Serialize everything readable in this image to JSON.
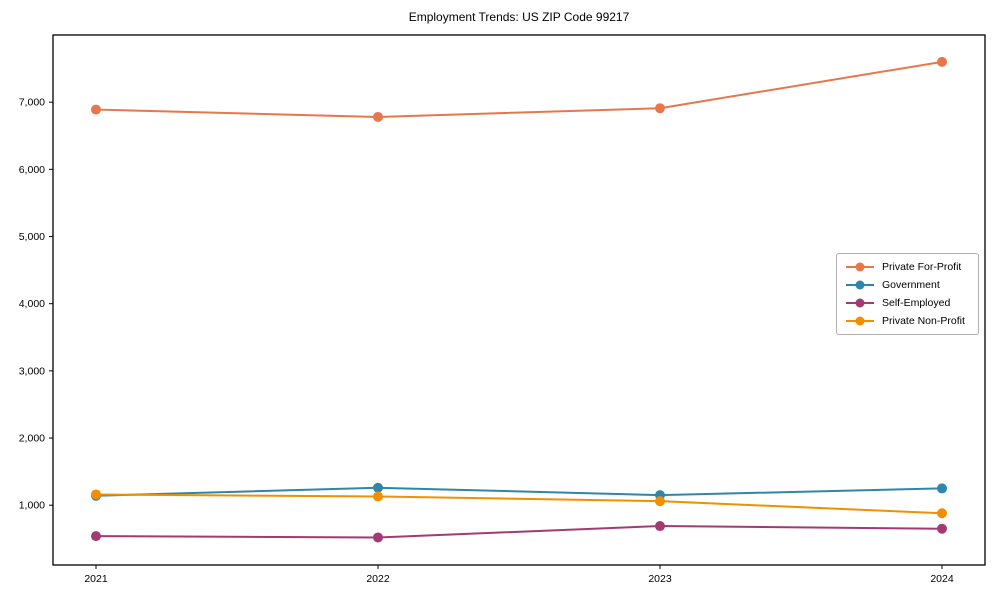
{
  "chart_data": {
    "type": "line",
    "title": "Employment Trends: US ZIP Code 99217",
    "x": [
      "2021",
      "2022",
      "2023",
      "2024"
    ],
    "series": [
      {
        "name": "Private For-Profit",
        "color": "#E8764B",
        "values": [
          6890,
          6780,
          6910,
          7600
        ]
      },
      {
        "name": "Government",
        "color": "#2E86AB",
        "values": [
          1140,
          1260,
          1150,
          1250
        ]
      },
      {
        "name": "Self-Employed",
        "color": "#A23B72",
        "values": [
          540,
          520,
          690,
          650
        ]
      },
      {
        "name": "Private Non-Profit",
        "color": "#F18F01",
        "values": [
          1160,
          1130,
          1060,
          880
        ]
      }
    ],
    "xlabel": "",
    "ylabel": "",
    "ylim": [
      110,
      8000
    ],
    "yticks": [
      1000,
      2000,
      3000,
      4000,
      5000,
      6000,
      7000
    ],
    "ytick_labels": [
      "1,000",
      "2,000",
      "3,000",
      "4,000",
      "5,000",
      "6,000",
      "7,000"
    ],
    "grid": false,
    "legend_position": "center-right",
    "axis_color": "#000000",
    "text_color": "#000000",
    "background": "#ffffff",
    "line_width": 2,
    "marker_radius": 5
  }
}
